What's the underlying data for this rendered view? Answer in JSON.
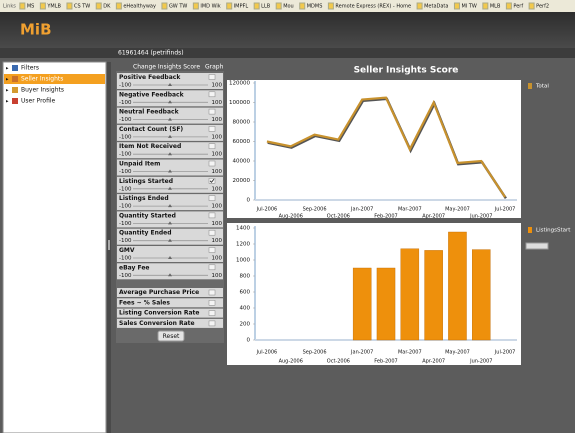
{
  "browser": {
    "links_label": "Links",
    "links": [
      "MS",
      "YMLB",
      "CS TW",
      "DK",
      "eHealthyway",
      "GW TW",
      "IMD Wik",
      "IMPFL",
      "LLB",
      "Mou",
      "MDMS",
      "Remote Express (REX) - Home",
      "MetaData",
      "MI TW",
      "MLB",
      "Perf",
      "Perf2"
    ]
  },
  "app": {
    "logo": "MiB",
    "nav": [
      {
        "label": "Filters",
        "selected": false
      },
      {
        "label": "Seller Insights",
        "selected": true
      },
      {
        "label": "Buyer Insights",
        "selected": false
      },
      {
        "label": "User Profile",
        "selected": false
      }
    ],
    "user": "61961464 (petrifinds)",
    "tabs": [
      "Change Insights Score",
      "Graph"
    ],
    "sliders": [
      {
        "label": "Positive Feedback",
        "min": -100,
        "max": 100,
        "checked": false
      },
      {
        "label": "Negative Feedback",
        "min": -100,
        "max": 100,
        "checked": false
      },
      {
        "label": "Neutral Feedback",
        "min": -100,
        "max": 100,
        "checked": false
      },
      {
        "label": "Contact Count (SF)",
        "min": -100,
        "max": 100,
        "checked": false
      },
      {
        "label": "Item Not Received",
        "min": -100,
        "max": 100,
        "checked": false
      },
      {
        "label": "Unpaid Item",
        "min": -100,
        "max": 100,
        "checked": false
      },
      {
        "label": "Listings Started",
        "min": -100,
        "max": 100,
        "checked": true
      },
      {
        "label": "Listings Ended",
        "min": -100,
        "max": 100,
        "checked": false
      },
      {
        "label": "Quantity Started",
        "min": -100,
        "max": 100,
        "checked": false
      },
      {
        "label": "Quantity Ended",
        "min": -100,
        "max": 100,
        "checked": false
      },
      {
        "label": "GMV",
        "min": -100,
        "max": 100,
        "checked": false
      },
      {
        "label": "eBay Fee",
        "min": -100,
        "max": 100,
        "checked": false
      }
    ],
    "options": [
      {
        "label": "Average Purchase Price",
        "checked": false
      },
      {
        "label": "Fees ~ % Sales",
        "checked": false
      },
      {
        "label": "Listing Conversion Rate",
        "checked": false
      },
      {
        "label": "Sales Conversion Rate",
        "checked": false
      }
    ],
    "reset": "Reset",
    "score_title": "Seller Insights Score"
  },
  "chart_data": [
    {
      "type": "line",
      "categories": [
        "Jul-2006",
        "Aug-2006",
        "Sep-2006",
        "Oct-2006",
        "Jan-2007",
        "Feb-2007",
        "Mar-2007",
        "Apr-2007",
        "May-2007",
        "Jun-2007",
        "Jul-2007"
      ],
      "series": [
        {
          "name": "Total",
          "color": "#c8922e",
          "values": [
            60000,
            55000,
            67000,
            62000,
            103000,
            105000,
            52000,
            100000,
            38000,
            40000,
            3000
          ]
        }
      ],
      "ylim": [
        0,
        120000
      ],
      "yticks": [
        0,
        20000,
        40000,
        60000,
        80000,
        100000,
        120000
      ]
    },
    {
      "type": "bar",
      "categories": [
        "Jul-2006",
        "Aug-2006",
        "Sep-2006",
        "Oct-2006",
        "Jan-2007",
        "Feb-2007",
        "Mar-2007",
        "Apr-2007",
        "May-2007",
        "Jun-2007",
        "Jul-2007"
      ],
      "series": [
        {
          "name": "ListingsStart",
          "color": "#ee900c",
          "values": [
            0,
            0,
            0,
            0,
            900,
            900,
            1140,
            1120,
            1350,
            1130,
            0
          ]
        }
      ],
      "ylim": [
        0,
        1400
      ],
      "yticks": [
        0,
        200,
        400,
        600,
        800,
        1000,
        1200,
        1400
      ]
    }
  ]
}
